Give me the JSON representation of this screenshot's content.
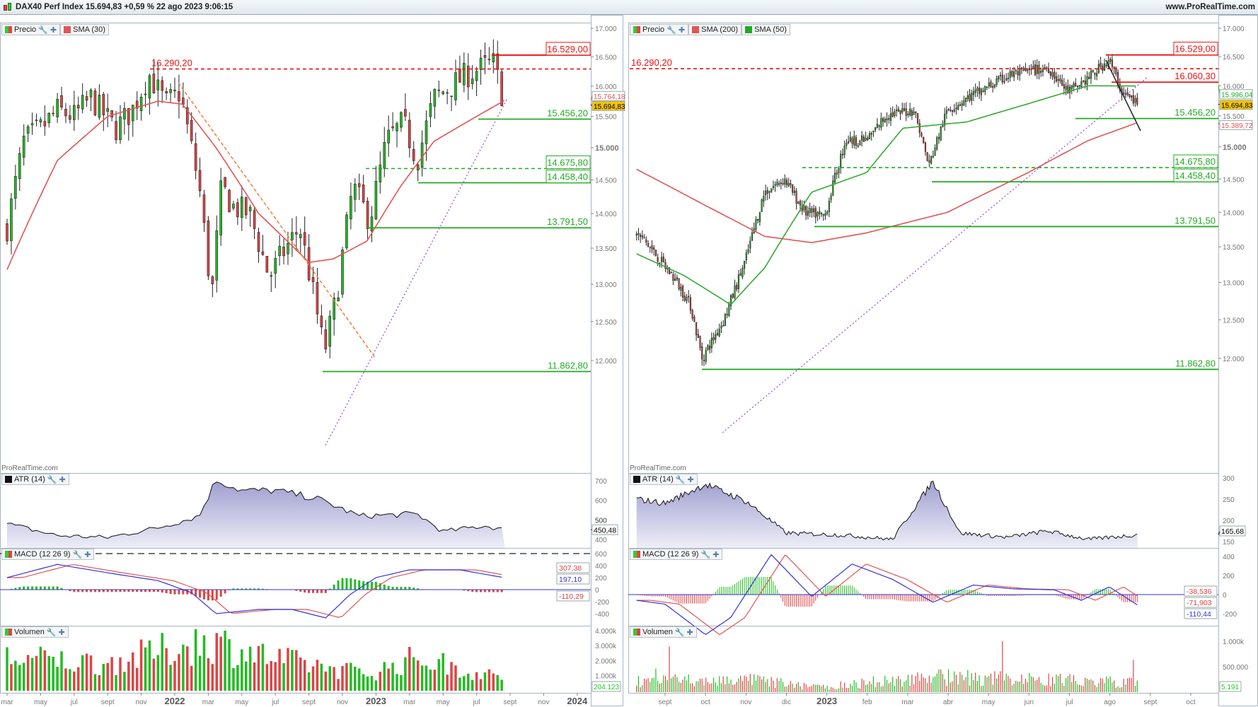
{
  "titlebar": {
    "title": "DAX40 Perf Index 15.694,83 +0,59 % 22 ago 2023 9:06:15",
    "site": "www.ProRealTime.com"
  },
  "left": {
    "legend": {
      "price": "Precio",
      "sma": "SMA (30)"
    },
    "watermark": "ProRealTime.com",
    "price_ticks": [
      "17.000",
      "16.500",
      "16.000",
      "15.500",
      "15.000",
      "14.500",
      "14.000",
      "13.500",
      "13.000",
      "12.500",
      "12.000"
    ],
    "levels": [
      {
        "label": "16.529,00",
        "value": 16529,
        "color": "#ee1111",
        "style": "solid",
        "box": true
      },
      {
        "label": "16.290,20",
        "value": 16290.2,
        "color": "#ee1111",
        "style": "dashed",
        "box": false
      },
      {
        "label": "15.456,20",
        "value": 15456.2,
        "color": "#22aa22",
        "style": "solid",
        "box": false
      },
      {
        "label": "14.675,80",
        "value": 14675.8,
        "color": "#22aa22",
        "style": "dashed",
        "box": true
      },
      {
        "label": "14.458,40",
        "value": 14458.4,
        "color": "#22aa22",
        "style": "solid",
        "box": true
      },
      {
        "label": "13.791,50",
        "value": 13791.5,
        "color": "#22aa22",
        "style": "solid",
        "box": false
      },
      {
        "label": "11.862,80",
        "value": 11862.8,
        "color": "#22aa22",
        "style": "solid",
        "box": false
      }
    ],
    "price_tags": {
      "sma": "15.764,18",
      "last": "15.694,83"
    },
    "atr": {
      "label": "ATR (14)",
      "ticks": [
        "700",
        "600",
        "500",
        "400"
      ],
      "value": "450,48"
    },
    "macd": {
      "label": "MACD (12 26 9)",
      "ticks": [
        "600",
        "400",
        "200",
        "0",
        "-200",
        "-400"
      ],
      "values": [
        "307,38",
        "197,10",
        "-110,29"
      ]
    },
    "volume": {
      "label": "Volumen",
      "ticks": [
        "4.000k",
        "3.000k",
        "2.000k",
        "1.000k"
      ],
      "value": "204.123"
    },
    "x_labels": [
      "mar",
      "may",
      "jul",
      "sept",
      "nov",
      "2022",
      "mar",
      "may",
      "jul",
      "sept",
      "nov",
      "2023",
      "mar",
      "may",
      "jul",
      "sept",
      "nov",
      "2024"
    ]
  },
  "right": {
    "legend": {
      "price": "Precio",
      "sma200": "SMA (200)",
      "sma50": "SMA (50)"
    },
    "watermark": "ProRealTime.com",
    "price_ticks": [
      "17.000",
      "16.500",
      "16.000",
      "15.500",
      "15.000",
      "14.500",
      "14.000",
      "13.500",
      "13.000",
      "12.500",
      "12.000"
    ],
    "levels": [
      {
        "label": "16.529,00",
        "value": 16529,
        "color": "#ee1111",
        "style": "solid",
        "box": true
      },
      {
        "label": "16.290,20",
        "value": 16290.2,
        "color": "#ee1111",
        "style": "dashed",
        "box": false
      },
      {
        "label": "16.060,30",
        "value": 16060.3,
        "color": "#ee1111",
        "style": "solid",
        "box": false
      },
      {
        "label": "15.456,20",
        "value": 15456.2,
        "color": "#22aa22",
        "style": "solid",
        "box": false
      },
      {
        "label": "14.675,80",
        "value": 14675.8,
        "color": "#22aa22",
        "style": "dashed",
        "box": true
      },
      {
        "label": "14.458,40",
        "value": 14458.4,
        "color": "#22aa22",
        "style": "solid",
        "box": true
      },
      {
        "label": "13.791,50",
        "value": 13791.5,
        "color": "#22aa22",
        "style": "solid",
        "box": false
      },
      {
        "label": "11.862,80",
        "value": 11862.8,
        "color": "#22aa22",
        "style": "solid",
        "box": false
      }
    ],
    "price_tags": {
      "sma50": "15.996,04",
      "last": "15.694,83",
      "sma200": "15.389,72"
    },
    "atr": {
      "label": "ATR (14)",
      "ticks": [
        "300",
        "250",
        "200",
        "150"
      ],
      "value": "165,68"
    },
    "macd": {
      "label": "MACD (12 26 9)",
      "ticks": [
        "400",
        "200",
        "0",
        "-200"
      ],
      "values": [
        "-38,536",
        "-71,903",
        "-110,44"
      ]
    },
    "volume": {
      "label": "Volumen",
      "ticks": [
        "1.000k",
        "500.000"
      ],
      "value": "5.191"
    },
    "x_labels": [
      "sept",
      "oct",
      "nov",
      "dic",
      "2023",
      "feb",
      "mar",
      "abr",
      "may",
      "jun",
      "jul",
      "ago",
      "sept",
      "oct"
    ]
  },
  "colors": {
    "up": "#22bb22",
    "down": "#dd4444",
    "sma_red": "#e05555",
    "sma_green": "#33aa33",
    "macd_line": "#3333dd",
    "signal": "#e05555",
    "atr_fill": "#b9b9dc",
    "last_tag": "#f5c400"
  },
  "chart_data": [
    {
      "type": "candlestick",
      "timeframe": "weekly",
      "yscale": "log",
      "ylim": [
        11800,
        17000
      ],
      "close_path": [
        [
          "2021-03-01",
          13800
        ],
        [
          "2021-04-01",
          15100
        ],
        [
          "2021-05-01",
          15300
        ],
        [
          "2021-06-01",
          15600
        ],
        [
          "2021-07-01",
          15500
        ],
        [
          "2021-08-01",
          15800
        ],
        [
          "2021-09-15",
          15300
        ],
        [
          "2021-10-15",
          15600
        ],
        [
          "2021-11-15",
          16200
        ],
        [
          "2021-12-15",
          15700
        ],
        [
          "2022-01-10",
          15900
        ],
        [
          "2022-02-15",
          14400
        ],
        [
          "2022-03-07",
          12800
        ],
        [
          "2022-03-25",
          14400
        ],
        [
          "2022-04-15",
          14100
        ],
        [
          "2022-05-15",
          14000
        ],
        [
          "2022-06-20",
          13100
        ],
        [
          "2022-07-20",
          13500
        ],
        [
          "2022-08-15",
          13800
        ],
        [
          "2022-09-29",
          12100
        ],
        [
          "2022-10-20",
          12800
        ],
        [
          "2022-11-20",
          14400
        ],
        [
          "2022-12-20",
          13900
        ],
        [
          "2023-01-20",
          15100
        ],
        [
          "2023-02-20",
          15400
        ],
        [
          "2023-03-15",
          14800
        ],
        [
          "2023-04-15",
          15800
        ],
        [
          "2023-05-15",
          16000
        ],
        [
          "2023-06-15",
          16200
        ],
        [
          "2023-07-31",
          16400
        ],
        [
          "2023-08-22",
          15695
        ]
      ],
      "sma30_path": [
        [
          "2021-03-01",
          13200
        ],
        [
          "2021-06-01",
          14800
        ],
        [
          "2021-09-01",
          15500
        ],
        [
          "2021-12-01",
          15750
        ],
        [
          "2022-01-15",
          15700
        ],
        [
          "2022-03-15",
          15000
        ],
        [
          "2022-06-01",
          14000
        ],
        [
          "2022-09-01",
          13300
        ],
        [
          "2022-10-15",
          13350
        ],
        [
          "2022-12-15",
          13600
        ],
        [
          "2023-02-15",
          14400
        ],
        [
          "2023-04-15",
          15100
        ],
        [
          "2023-07-01",
          15500
        ],
        [
          "2023-08-22",
          15764
        ]
      ],
      "atr_path": [
        [
          "2021-03-01",
          480
        ],
        [
          "2021-06-01",
          420
        ],
        [
          "2021-09-01",
          410
        ],
        [
          "2021-12-01",
          460
        ],
        [
          "2022-02-15",
          520
        ],
        [
          "2022-03-15",
          705
        ],
        [
          "2022-05-01",
          650
        ],
        [
          "2022-07-01",
          650
        ],
        [
          "2022-09-15",
          610
        ],
        [
          "2022-12-01",
          520
        ],
        [
          "2023-03-15",
          530
        ],
        [
          "2023-05-01",
          440
        ],
        [
          "2023-07-15",
          470
        ],
        [
          "2023-08-22",
          450
        ]
      ],
      "macd_path": [
        [
          "2021-03-01",
          200
        ],
        [
          "2021-06-01",
          420
        ],
        [
          "2021-09-01",
          280
        ],
        [
          "2021-12-01",
          150
        ],
        [
          "2022-02-01",
          -50
        ],
        [
          "2022-03-15",
          -400
        ],
        [
          "2022-06-01",
          -330
        ],
        [
          "2022-08-01",
          -330
        ],
        [
          "2022-10-01",
          -470
        ],
        [
          "2022-11-15",
          -80
        ],
        [
          "2023-01-01",
          200
        ],
        [
          "2023-03-01",
          330
        ],
        [
          "2023-06-01",
          330
        ],
        [
          "2023-08-22",
          197
        ]
      ],
      "volume_path": [
        [
          "2021-03-01",
          2300
        ],
        [
          "2021-09-01",
          1900
        ],
        [
          "2022-03-01",
          3500
        ],
        [
          "2022-07-01",
          2200
        ],
        [
          "2022-12-20",
          1200
        ],
        [
          "2023-03-15",
          2300
        ],
        [
          "2023-08-22",
          800
        ]
      ]
    },
    {
      "type": "candlestick",
      "timeframe": "daily",
      "yscale": "log",
      "ylim": [
        11800,
        17000
      ],
      "close_path": [
        [
          "2022-08-10",
          13700
        ],
        [
          "2022-08-20",
          13500
        ],
        [
          "2022-09-10",
          13000
        ],
        [
          "2022-09-20",
          12700
        ],
        [
          "2022-09-29",
          12000
        ],
        [
          "2022-10-15",
          12500
        ],
        [
          "2022-10-31",
          13300
        ],
        [
          "2022-11-15",
          14300
        ],
        [
          "2022-11-30",
          14500
        ],
        [
          "2022-12-15",
          14000
        ],
        [
          "2022-12-30",
          13950
        ],
        [
          "2023-01-15",
          15100
        ],
        [
          "2023-01-31",
          15100
        ],
        [
          "2023-02-15",
          15500
        ],
        [
          "2023-03-06",
          15600
        ],
        [
          "2023-03-17",
          14700
        ],
        [
          "2023-03-31",
          15600
        ],
        [
          "2023-04-20",
          15850
        ],
        [
          "2023-05-19",
          16200
        ],
        [
          "2023-06-16",
          16300
        ],
        [
          "2023-06-30",
          15900
        ],
        [
          "2023-07-14",
          16100
        ],
        [
          "2023-07-31",
          16450
        ],
        [
          "2023-08-10",
          15900
        ],
        [
          "2023-08-22",
          15695
        ]
      ],
      "sma200_path": [
        [
          "2022-08-10",
          14650
        ],
        [
          "2022-10-01",
          14100
        ],
        [
          "2022-11-15",
          13650
        ],
        [
          "2022-12-20",
          13560
        ],
        [
          "2023-01-31",
          13700
        ],
        [
          "2023-03-31",
          14000
        ],
        [
          "2023-05-31",
          14600
        ],
        [
          "2023-07-15",
          15100
        ],
        [
          "2023-08-22",
          15390
        ]
      ],
      "sma50_path": [
        [
          "2022-08-10",
          13400
        ],
        [
          "2022-09-15",
          13100
        ],
        [
          "2022-10-20",
          12700
        ],
        [
          "2022-11-15",
          13200
        ],
        [
          "2022-12-20",
          14300
        ],
        [
          "2023-01-31",
          14600
        ],
        [
          "2023-02-28",
          15300
        ],
        [
          "2023-04-15",
          15400
        ],
        [
          "2023-05-31",
          15700
        ],
        [
          "2023-07-15",
          16000
        ],
        [
          "2023-08-22",
          15996
        ]
      ],
      "atr_path": [
        [
          "2022-08-10",
          250
        ],
        [
          "2022-09-01",
          240
        ],
        [
          "2022-10-01",
          285
        ],
        [
          "2022-11-01",
          245
        ],
        [
          "2022-12-01",
          170
        ],
        [
          "2023-01-15",
          165
        ],
        [
          "2023-02-20",
          155
        ],
        [
          "2023-03-20",
          292
        ],
        [
          "2023-04-10",
          170
        ],
        [
          "2023-05-15",
          160
        ],
        [
          "2023-06-15",
          175
        ],
        [
          "2023-07-15",
          155
        ],
        [
          "2023-08-22",
          166
        ]
      ],
      "macd_path": [
        [
          "2022-08-10",
          -60
        ],
        [
          "2022-09-01",
          -100
        ],
        [
          "2022-10-01",
          -420
        ],
        [
          "2022-10-20",
          -240
        ],
        [
          "2022-11-20",
          420
        ],
        [
          "2022-12-20",
          -20
        ],
        [
          "2023-01-20",
          320
        ],
        [
          "2023-02-20",
          160
        ],
        [
          "2023-03-20",
          -80
        ],
        [
          "2023-04-20",
          100
        ],
        [
          "2023-05-20",
          60
        ],
        [
          "2023-06-20",
          50
        ],
        [
          "2023-07-10",
          -60
        ],
        [
          "2023-07-31",
          80
        ],
        [
          "2023-08-22",
          -110
        ]
      ],
      "volume_path": [
        [
          "2022-08-10",
          180
        ],
        [
          "2022-11-01",
          200
        ],
        [
          "2022-12-28",
          80
        ],
        [
          "2023-03-15",
          250
        ],
        [
          "2023-06-15",
          200
        ],
        [
          "2023-08-22",
          150
        ]
      ]
    }
  ]
}
